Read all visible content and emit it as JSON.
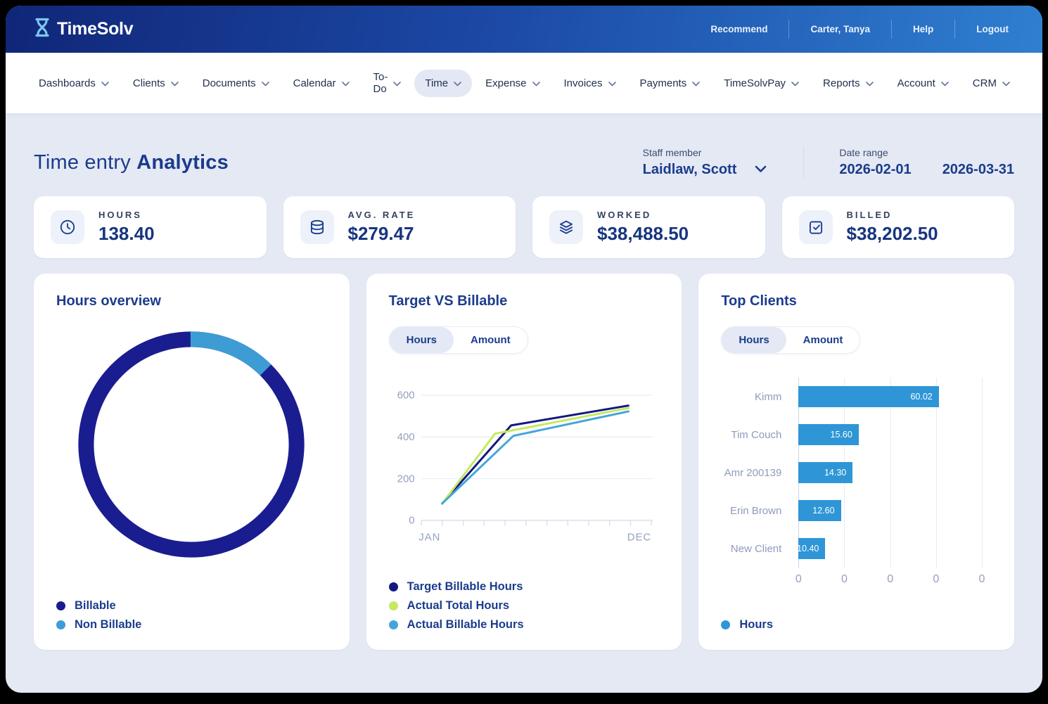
{
  "header": {
    "brand": "TimeSolv",
    "brand_icon": "hourglass-icon",
    "links": [
      "Recommend",
      "Carter, Tanya",
      "Help",
      "Logout"
    ]
  },
  "nav": {
    "items": [
      {
        "label": "Dashboards",
        "active": false
      },
      {
        "label": "Clients",
        "active": false
      },
      {
        "label": "Documents",
        "active": false
      },
      {
        "label": "Calendar",
        "active": false
      },
      {
        "label": "To-Do",
        "active": false
      },
      {
        "label": "Time",
        "active": true
      },
      {
        "label": "Expense",
        "active": false
      },
      {
        "label": "Invoices",
        "active": false
      },
      {
        "label": "Payments",
        "active": false
      },
      {
        "label": "TimeSolvPay",
        "active": false
      },
      {
        "label": "Reports",
        "active": false
      },
      {
        "label": "Account",
        "active": false
      },
      {
        "label": "CRM",
        "active": false
      }
    ]
  },
  "page": {
    "title_regular": "Time entry",
    "title_bold": "Analytics",
    "staff": {
      "label": "Staff member",
      "value": "Laidlaw, Scott"
    },
    "date_range": {
      "label": "Date range",
      "start": "2026-02-01",
      "end": "2026-03-31"
    }
  },
  "kpis": [
    {
      "icon": "clock-icon",
      "label": "HOURS",
      "value": "138.40"
    },
    {
      "icon": "database-icon",
      "label": "AVG. RATE",
      "value": "$279.47"
    },
    {
      "icon": "layers-icon",
      "label": "WORKED",
      "value": "$38,488.50"
    },
    {
      "icon": "check-square-icon",
      "label": "BILLED",
      "value": "$38,202.50"
    }
  ],
  "cards": {
    "hours_overview": {
      "title": "Hours overview"
    },
    "target_vs_billable": {
      "title": "Target VS Billable",
      "tabs": [
        "Hours",
        "Amount"
      ],
      "active_tab": "Hours"
    },
    "top_clients": {
      "title": "Top Clients",
      "tabs": [
        "Hours",
        "Amount"
      ],
      "active_tab": "Hours"
    }
  },
  "colors": {
    "header_gradient_start": "#102678",
    "header_gradient_end": "#2F7FD0",
    "page_background": "#E4E9F4",
    "navy_text": "#1B3C8C",
    "axis_gray": "#93A0BE",
    "active_pill": "#E4E9F5"
  },
  "chart_data": [
    {
      "name": "hours_overview",
      "type": "pie",
      "subtype": "donut",
      "segments": [
        {
          "label": "Billable",
          "pct": 87.5,
          "color": "#1A1D8F"
        },
        {
          "label": "Non Billable",
          "pct": 12.5,
          "color": "#3E9CD4"
        }
      ],
      "start": "non-billable segment starts at 12 o'clock, clockwise",
      "legend_position": "bottom-left"
    },
    {
      "name": "target_vs_billable",
      "type": "line",
      "x_axis": {
        "first_label": "JAN",
        "last_label": "DEC",
        "tick_count": 12
      },
      "y_axis": {
        "ticks": [
          0,
          200,
          400,
          600
        ],
        "range": [
          0,
          600
        ]
      },
      "series": [
        {
          "name": "Target Billable Hours",
          "color": "#13197F",
          "points": [
            [
              0.09,
              80
            ],
            [
              0.39,
              455
            ],
            [
              0.9,
              550
            ]
          ]
        },
        {
          "name": "Actual Total Hours",
          "color": "#C5E95F",
          "points": [
            [
              0.09,
              80
            ],
            [
              0.32,
              415
            ],
            [
              0.9,
              538
            ]
          ]
        },
        {
          "name": "Actual Billable Hours",
          "color": "#45A5DB",
          "points": [
            [
              0.09,
              80
            ],
            [
              0.4,
              405
            ],
            [
              0.9,
              522
            ]
          ]
        }
      ],
      "grid": "horizontal",
      "legend_position": "bottom-left"
    },
    {
      "name": "top_clients",
      "type": "bar",
      "orientation": "horizontal",
      "categories": [
        "Kimm",
        "Tim Couch",
        "Amr 200139",
        "Erin Brown",
        "New Client"
      ],
      "values": [
        60.02,
        15.6,
        14.3,
        12.6,
        10.4
      ],
      "value_labels": [
        "60.02",
        "15.60",
        "14.30",
        "12.60",
        "10.40"
      ],
      "bar_width_pct": [
        76.5,
        32.8,
        29.5,
        23.1,
        14.6
      ],
      "bar_color": "#2E96D6",
      "x_tick_labels": [
        "0",
        "0",
        "0",
        "0",
        "0"
      ],
      "grid": "vertical",
      "legend": [
        {
          "label": "Hours",
          "color": "#2E96D6"
        }
      ],
      "legend_position": "bottom-left"
    }
  ]
}
